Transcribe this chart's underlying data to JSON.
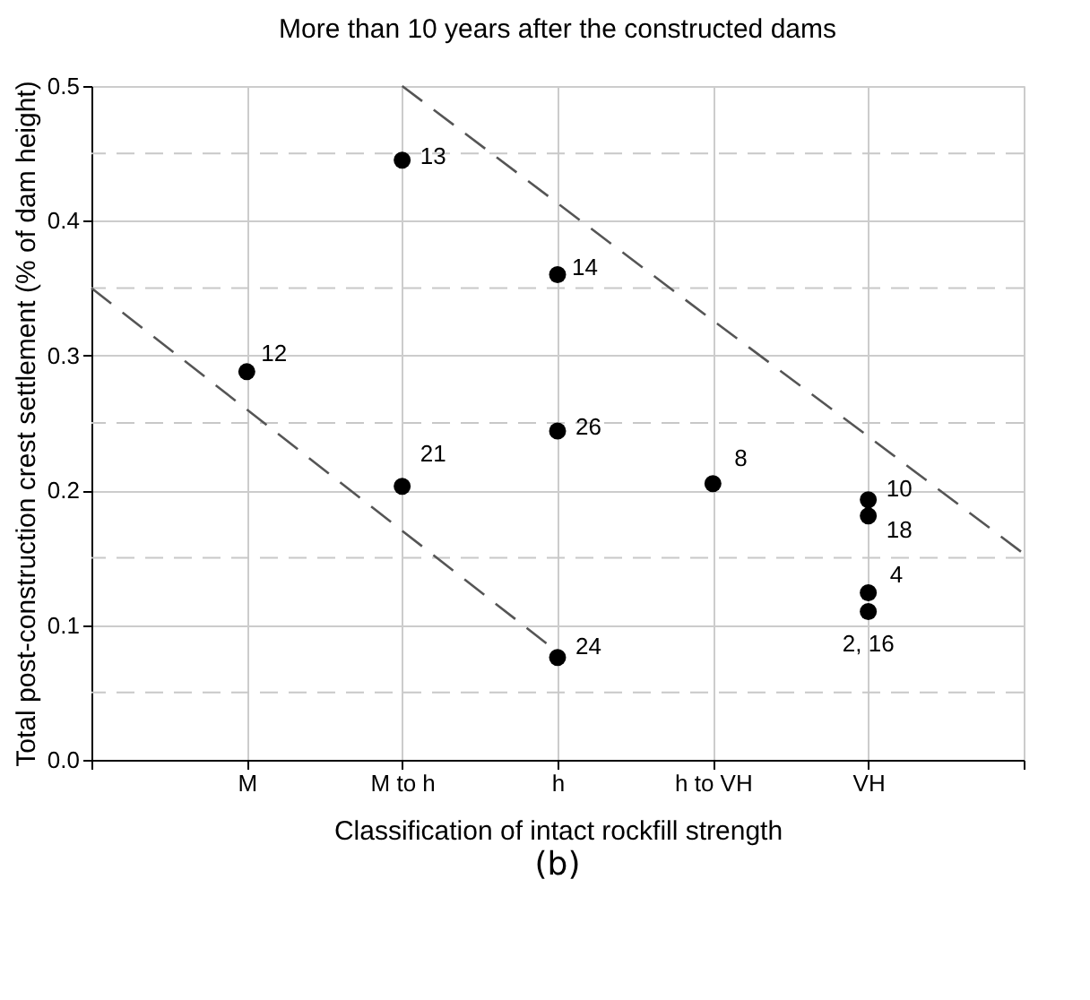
{
  "chart_data": {
    "type": "scatter",
    "title": "More than 10 years after the constructed dams",
    "xlabel": "Classification of intact rockfill strength",
    "ylabel": "Total post-construction crest settlement  (% of dam height)",
    "annotations": [
      {
        "text": "12",
        "x": "M",
        "y": 0.288
      },
      {
        "text": "13",
        "x": "M to h",
        "y": 0.445
      },
      {
        "text": "21",
        "x": "M to h",
        "y": 0.203
      },
      {
        "text": "14",
        "x": "h",
        "y": 0.36
      },
      {
        "text": "26",
        "x": "h",
        "y": 0.244
      },
      {
        "text": "24",
        "x": "h",
        "y": 0.076
      },
      {
        "text": "8",
        "x": "h to VH",
        "y": 0.205
      },
      {
        "text": "10",
        "x": "VH",
        "y": 0.193
      },
      {
        "text": "18",
        "x": "VH",
        "y": 0.181
      },
      {
        "text": "4",
        "x": "VH",
        "y": 0.124
      },
      {
        "text": "2, 16",
        "x": "VH",
        "y": 0.11
      },
      "(b)"
    ],
    "categories": [
      null,
      "M",
      "M to h",
      "h",
      "h to VH",
      "VH",
      null
    ],
    "ylim": [
      0,
      0.5
    ],
    "yticks": [
      {
        "value": 0,
        "label": "0.0"
      },
      {
        "value": 0.05,
        "label": null
      },
      0.1,
      {
        "value": 0.15,
        "label": null
      },
      0.2,
      {
        "value": 0.25,
        "label": null
      },
      0.3,
      {
        "value": 0.35,
        "label": null
      },
      0.4,
      {
        "value": 0.45,
        "label": null
      },
      0.5
    ],
    "grid": true,
    "series": [
      {
        "color": "#000000",
        "marker": "circle",
        "x": [
          "M",
          "M to h",
          "M to h",
          "h",
          "h",
          "h",
          "h to VH",
          "VH",
          "VH",
          "VH",
          "VH"
        ],
        "values": [
          0.288,
          0.445,
          0.203,
          0.36,
          0.244,
          0.076,
          0.205,
          0.193,
          0.181,
          0.124,
          0.11
        ]
      },
      {
        "type": "line",
        "color": "#555555",
        "line_style": "dashed",
        "values": [
          0.35,
          0.26,
          0.17,
          0.08,
          null,
          null,
          null
        ]
      },
      {
        "type": "line",
        "color": "#555555",
        "line_style": "dashed",
        "values": [
          null,
          null,
          0.5,
          0.413,
          0.326,
          0.24,
          0.153
        ]
      }
    ]
  }
}
